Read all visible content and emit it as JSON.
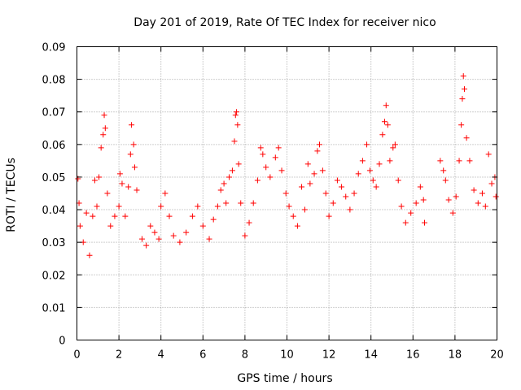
{
  "chart_data": {
    "type": "scatter",
    "title": "Day 201 of 2019, Rate Of TEC Index for receiver nico",
    "xlabel": "GPS time / hours",
    "ylabel": "ROTI / TECUs",
    "xlim": [
      0,
      20
    ],
    "ylim": [
      0,
      0.09
    ],
    "xticks": [
      0,
      2,
      4,
      6,
      8,
      10,
      12,
      14,
      16,
      18,
      20
    ],
    "xtick_labels": [
      "0",
      "2",
      "4",
      "6",
      "8",
      "10",
      "12",
      "14",
      "16",
      "18",
      "20"
    ],
    "yticks": [
      0,
      0.01,
      0.02,
      0.03,
      0.04,
      0.05,
      0.06,
      0.07,
      0.08,
      0.09
    ],
    "ytick_labels": [
      "0",
      "0.01",
      "0.02",
      "0.03",
      "0.04",
      "0.05",
      "0.06",
      "0.07",
      "0.08",
      "0.09"
    ],
    "grid": true,
    "marker": "plus",
    "color": "#ff0000",
    "data_gap_hours": [
      16.6,
      17.2
    ],
    "series": [
      {
        "name": "ROTI",
        "points": [
          [
            0.05,
            0.0495
          ],
          [
            0.1,
            0.042
          ],
          [
            0.15,
            0.035
          ],
          [
            0.3,
            0.03
          ],
          [
            0.45,
            0.039
          ],
          [
            0.6,
            0.026
          ],
          [
            0.75,
            0.038
          ],
          [
            0.85,
            0.049
          ],
          [
            0.95,
            0.041
          ],
          [
            1.05,
            0.05
          ],
          [
            1.15,
            0.059
          ],
          [
            1.25,
            0.063
          ],
          [
            1.3,
            0.069
          ],
          [
            1.35,
            0.065
          ],
          [
            1.45,
            0.045
          ],
          [
            1.6,
            0.035
          ],
          [
            1.8,
            0.038
          ],
          [
            2.0,
            0.041
          ],
          [
            2.05,
            0.051
          ],
          [
            2.15,
            0.048
          ],
          [
            2.3,
            0.038
          ],
          [
            2.45,
            0.047
          ],
          [
            2.55,
            0.057
          ],
          [
            2.6,
            0.066
          ],
          [
            2.7,
            0.06
          ],
          [
            2.75,
            0.053
          ],
          [
            2.85,
            0.046
          ],
          [
            3.1,
            0.031
          ],
          [
            3.3,
            0.029
          ],
          [
            3.5,
            0.035
          ],
          [
            3.7,
            0.033
          ],
          [
            3.9,
            0.031
          ],
          [
            4.0,
            0.041
          ],
          [
            4.2,
            0.045
          ],
          [
            4.4,
            0.038
          ],
          [
            4.6,
            0.032
          ],
          [
            4.9,
            0.03
          ],
          [
            5.2,
            0.033
          ],
          [
            5.5,
            0.038
          ],
          [
            5.75,
            0.041
          ],
          [
            6.0,
            0.035
          ],
          [
            6.3,
            0.031
          ],
          [
            6.5,
            0.037
          ],
          [
            6.7,
            0.041
          ],
          [
            6.85,
            0.046
          ],
          [
            7.0,
            0.048
          ],
          [
            7.1,
            0.042
          ],
          [
            7.25,
            0.05
          ],
          [
            7.4,
            0.052
          ],
          [
            7.5,
            0.061
          ],
          [
            7.55,
            0.069
          ],
          [
            7.6,
            0.07
          ],
          [
            7.65,
            0.066
          ],
          [
            7.7,
            0.054
          ],
          [
            7.8,
            0.042
          ],
          [
            8.0,
            0.032
          ],
          [
            8.2,
            0.036
          ],
          [
            8.4,
            0.042
          ],
          [
            8.6,
            0.049
          ],
          [
            8.75,
            0.059
          ],
          [
            8.85,
            0.057
          ],
          [
            9.0,
            0.053
          ],
          [
            9.2,
            0.05
          ],
          [
            9.45,
            0.056
          ],
          [
            9.6,
            0.059
          ],
          [
            9.75,
            0.052
          ],
          [
            9.95,
            0.045
          ],
          [
            10.1,
            0.041
          ],
          [
            10.3,
            0.038
          ],
          [
            10.5,
            0.035
          ],
          [
            10.7,
            0.047
          ],
          [
            10.85,
            0.04
          ],
          [
            11.0,
            0.054
          ],
          [
            11.1,
            0.048
          ],
          [
            11.3,
            0.051
          ],
          [
            11.45,
            0.058
          ],
          [
            11.55,
            0.06
          ],
          [
            11.7,
            0.052
          ],
          [
            11.85,
            0.045
          ],
          [
            12.0,
            0.038
          ],
          [
            12.2,
            0.042
          ],
          [
            12.4,
            0.049
          ],
          [
            12.6,
            0.047
          ],
          [
            12.8,
            0.044
          ],
          [
            13.0,
            0.04
          ],
          [
            13.2,
            0.045
          ],
          [
            13.4,
            0.051
          ],
          [
            13.6,
            0.055
          ],
          [
            13.8,
            0.06
          ],
          [
            13.95,
            0.052
          ],
          [
            14.1,
            0.049
          ],
          [
            14.25,
            0.047
          ],
          [
            14.4,
            0.054
          ],
          [
            14.55,
            0.063
          ],
          [
            14.65,
            0.067
          ],
          [
            14.72,
            0.072
          ],
          [
            14.8,
            0.066
          ],
          [
            14.9,
            0.055
          ],
          [
            15.05,
            0.059
          ],
          [
            15.15,
            0.06
          ],
          [
            15.3,
            0.049
          ],
          [
            15.45,
            0.041
          ],
          [
            15.65,
            0.036
          ],
          [
            15.9,
            0.039
          ],
          [
            16.15,
            0.042
          ],
          [
            16.35,
            0.047
          ],
          [
            16.5,
            0.043
          ],
          [
            16.55,
            0.036
          ],
          [
            17.3,
            0.055
          ],
          [
            17.45,
            0.052
          ],
          [
            17.55,
            0.049
          ],
          [
            17.7,
            0.043
          ],
          [
            17.9,
            0.039
          ],
          [
            18.05,
            0.044
          ],
          [
            18.2,
            0.055
          ],
          [
            18.3,
            0.066
          ],
          [
            18.35,
            0.074
          ],
          [
            18.4,
            0.081
          ],
          [
            18.45,
            0.077
          ],
          [
            18.55,
            0.062
          ],
          [
            18.7,
            0.055
          ],
          [
            18.9,
            0.046
          ],
          [
            19.1,
            0.042
          ],
          [
            19.3,
            0.045
          ],
          [
            19.45,
            0.041
          ],
          [
            19.6,
            0.057
          ],
          [
            19.75,
            0.048
          ],
          [
            19.9,
            0.05
          ],
          [
            19.95,
            0.044
          ]
        ]
      }
    ]
  }
}
